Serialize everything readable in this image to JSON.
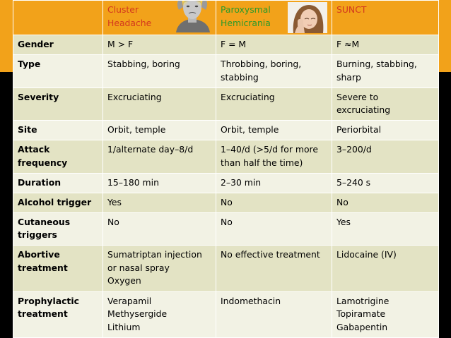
{
  "header": {
    "corner": "",
    "columns": [
      {
        "name": "Cluster Headache",
        "line1": "Cluster",
        "line2": "Headache"
      },
      {
        "name": "Paroxysmal Hemicrania",
        "line1": "Paroxysmal",
        "line2": "Hemicrania"
      },
      {
        "name": "SUNCT",
        "line1": "SUNCT",
        "line2": ""
      }
    ]
  },
  "rows": [
    {
      "label": "Gender",
      "cluster": [
        "M > F"
      ],
      "paroxysmal": [
        "F = M"
      ],
      "sunct": [
        "F ≈M"
      ]
    },
    {
      "label": "Type",
      "cluster": [
        "Stabbing, boring"
      ],
      "paroxysmal": [
        "Throbbing, boring,",
        "stabbing"
      ],
      "sunct": [
        "Burning, stabbing,",
        "sharp"
      ]
    },
    {
      "label": "Severity",
      "cluster": [
        "Excruciating"
      ],
      "paroxysmal": [
        "Excruciating"
      ],
      "sunct": [
        "Severe to",
        "excruciating"
      ]
    },
    {
      "label": "Site",
      "cluster": [
        "Orbit, temple"
      ],
      "paroxysmal": [
        "Orbit, temple"
      ],
      "sunct": [
        "Periorbital"
      ]
    },
    {
      "label": "Attack frequency",
      "cluster": [
        "1/alternate day–8/d"
      ],
      "paroxysmal": [
        "1–40/d (>5/d for more",
        "than half the time)"
      ],
      "sunct": [
        "3–200/d"
      ]
    },
    {
      "label": "Duration",
      "cluster": [
        "15–180 min"
      ],
      "paroxysmal": [
        "2–30 min"
      ],
      "sunct": [
        "5–240 s"
      ]
    },
    {
      "label": "Alcohol trigger",
      "cluster": [
        "Yes"
      ],
      "paroxysmal": [
        "No"
      ],
      "sunct": [
        "No"
      ]
    },
    {
      "label": "Cutaneous triggers",
      "cluster": [
        "No"
      ],
      "paroxysmal": [
        "No"
      ],
      "sunct": [
        "Yes"
      ]
    },
    {
      "label": "Abortive treatment",
      "cluster": [
        "Sumatriptan injection",
        "or nasal spray",
        "Oxygen"
      ],
      "paroxysmal": [
        "No effective treatment"
      ],
      "sunct": [
        "Lidocaine (IV)"
      ]
    },
    {
      "label": "Prophylactic treatment",
      "cluster": [
        "Verapamil",
        "Methysergide",
        "Lithium"
      ],
      "paroxysmal": [
        "Indomethacin"
      ],
      "sunct": [
        "Lamotrigine",
        "Topiramate",
        "Gabapentin"
      ]
    }
  ],
  "colors": {
    "background": "#000000",
    "accent": "#f2a21a",
    "header_red": "#d3381e",
    "header_green": "#2b9a2b",
    "band_dark": "#e3e3c4",
    "band_light": "#f2f2e4"
  }
}
